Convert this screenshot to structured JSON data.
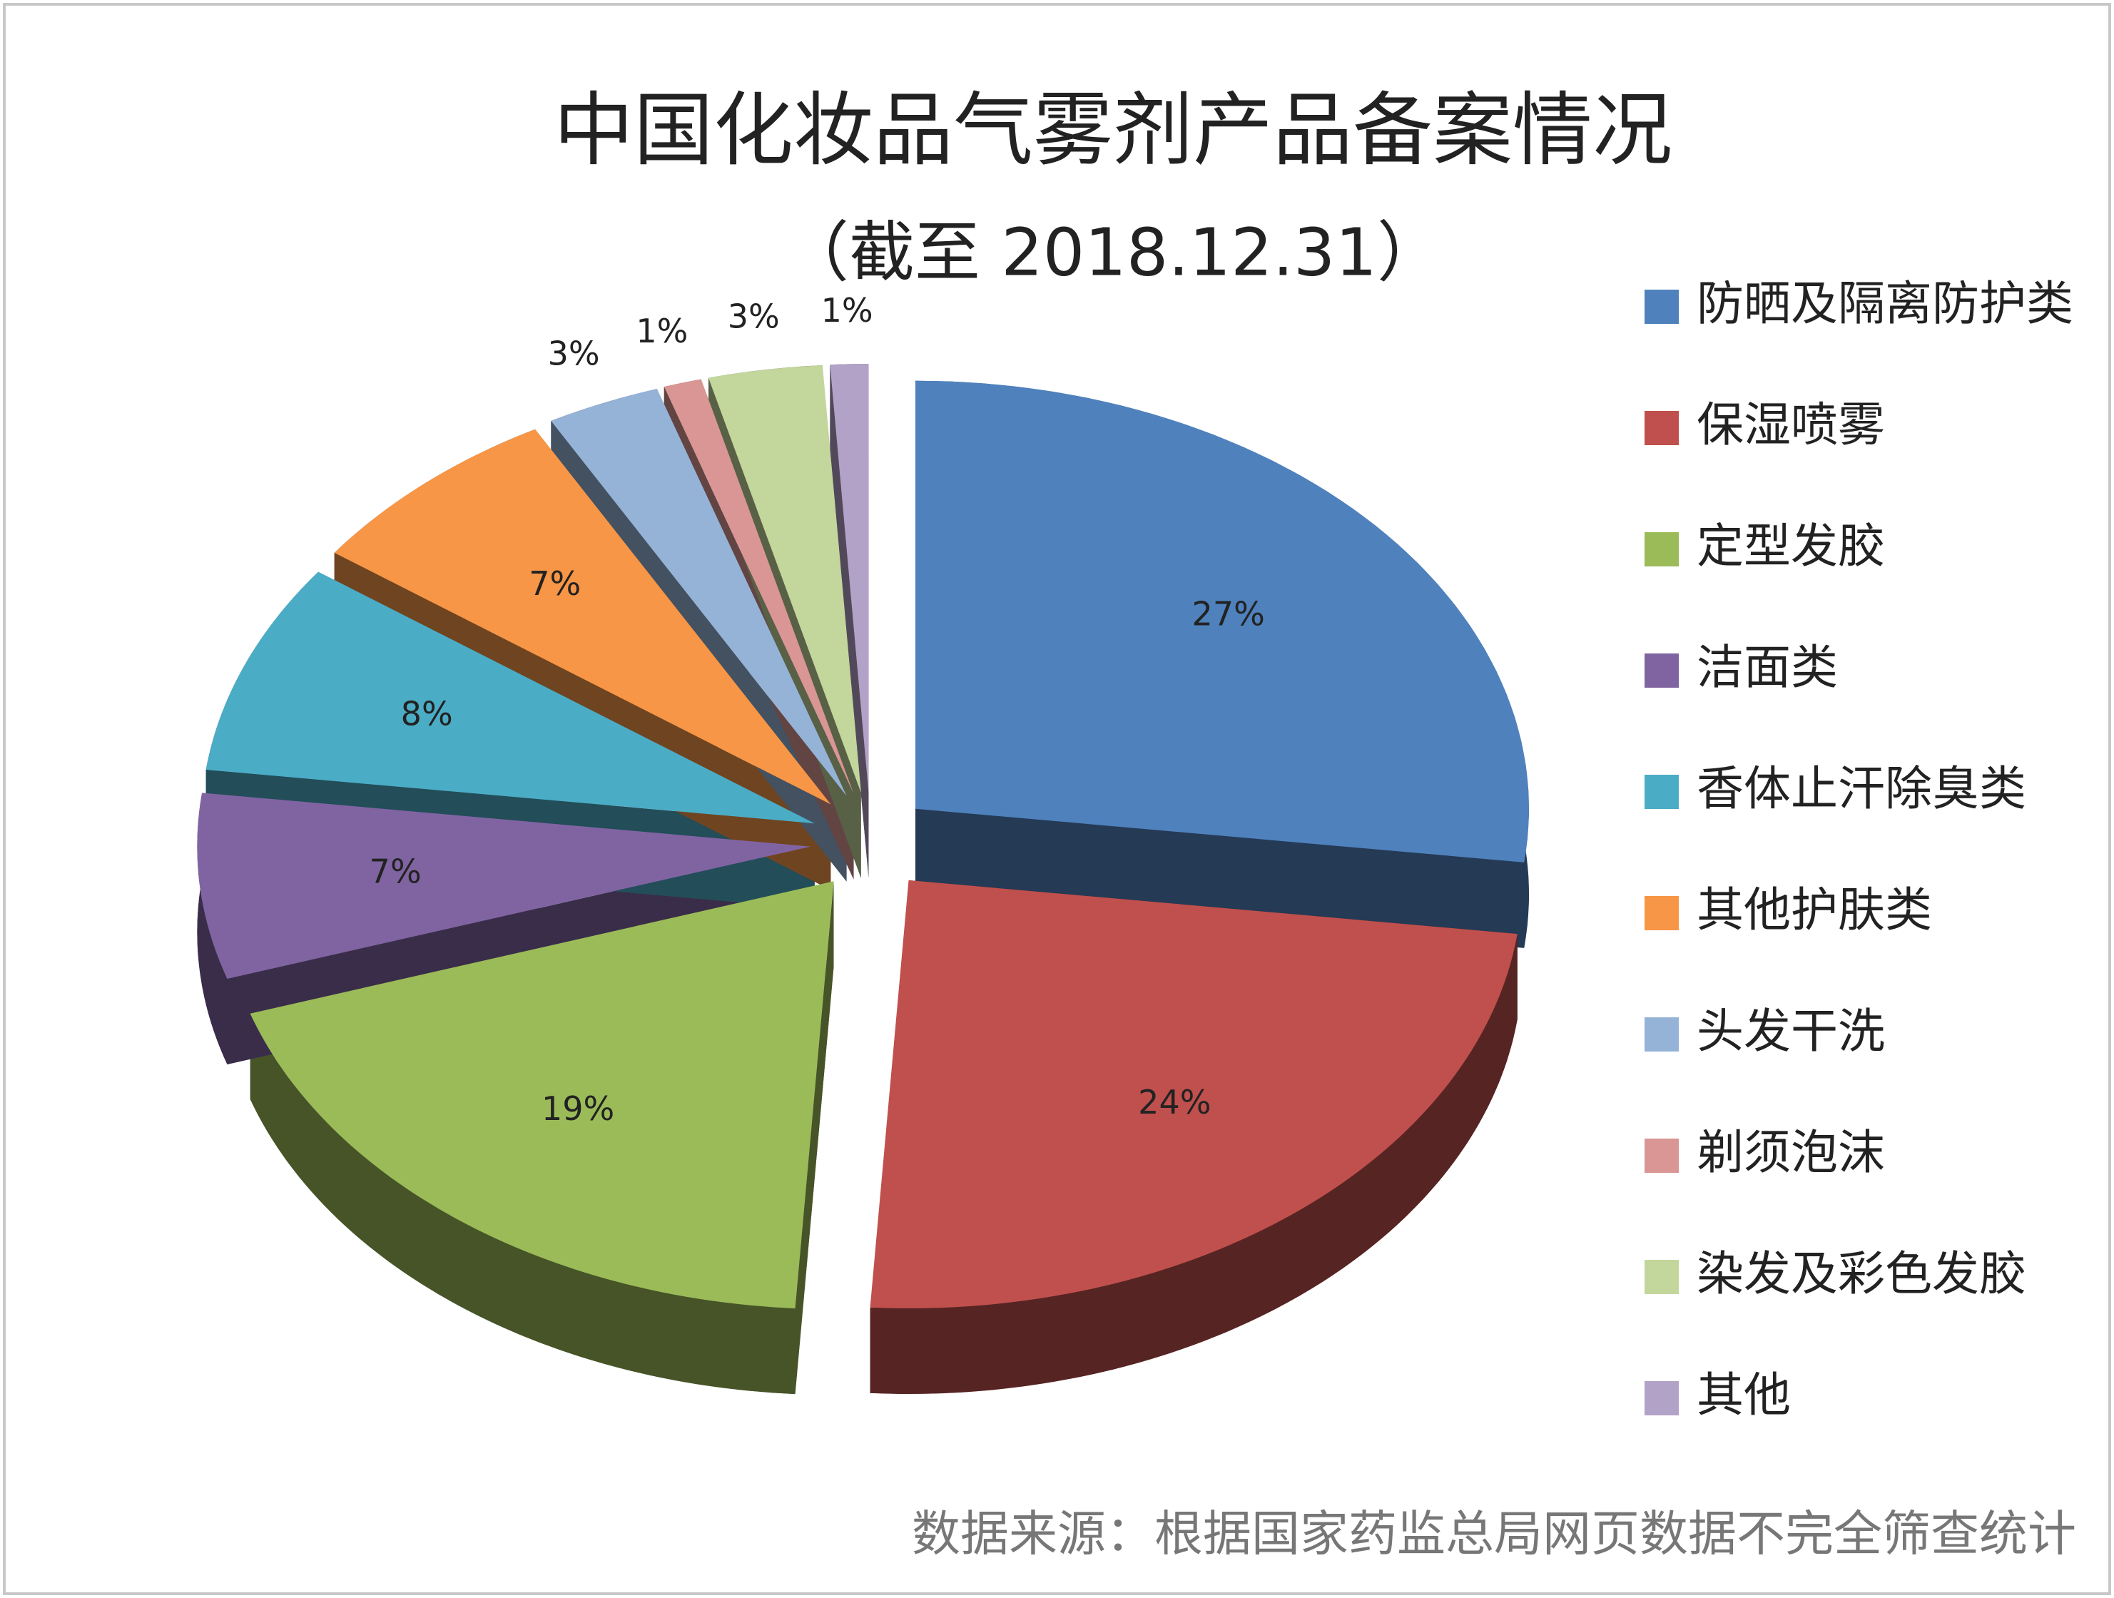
{
  "chart_data": {
    "type": "pie",
    "title": "中国化妆品气雾剂产品备案情况",
    "subtitle": "（截至 2018.12.31）",
    "categories": [
      "防晒及隔离防护类",
      "保湿喷雾",
      "定型发胶",
      "洁面类",
      "香体止汗除臭类",
      "其他护肤类",
      "头发干洗",
      "剃须泡沫",
      "染发及彩色发胶",
      "其他"
    ],
    "values": [
      27,
      24,
      19,
      7,
      8,
      7,
      3,
      1,
      3,
      1
    ],
    "value_labels": [
      "27%",
      "24%",
      "19%",
      "7%",
      "8%",
      "7%",
      "3%",
      "1%",
      "3%",
      "1%"
    ],
    "colors": [
      "#4f81bd",
      "#c0504d",
      "#9bbb59",
      "#8064a2",
      "#4bacc6",
      "#f79646",
      "#95b3d7",
      "#d99694",
      "#c3d69b",
      "#b3a2c7"
    ],
    "legend": "right",
    "source": "数据来源：根据国家药监总局网页数据不完全筛查统计"
  }
}
